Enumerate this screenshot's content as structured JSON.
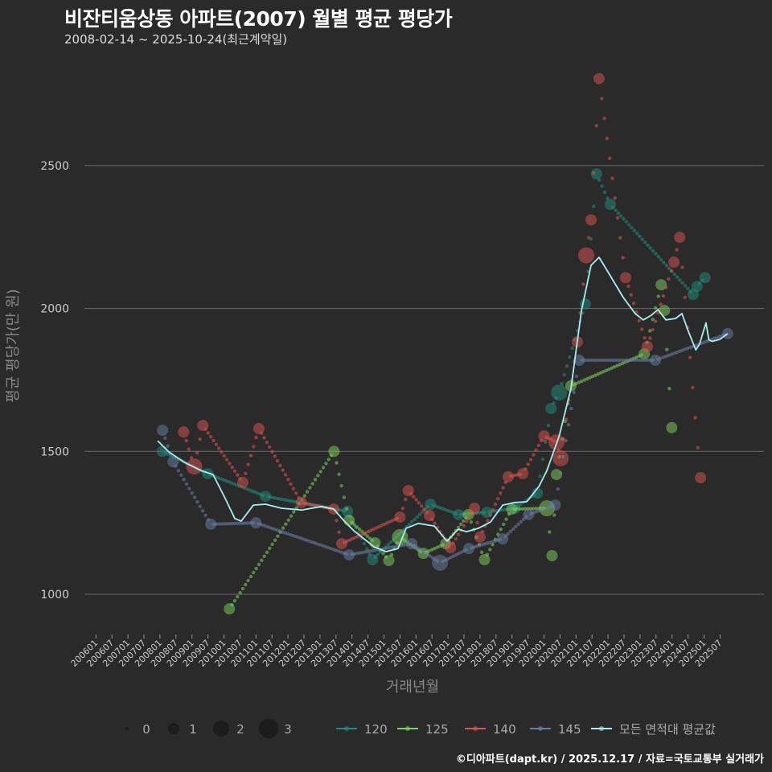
{
  "title": "비잔티움상동 아파트(2007) 월별 평균 평당가",
  "subtitle": "2008-02-14 ~ 2025-10-24(최근계약일)",
  "caption": "©디아파트(dapt.kr) / 2025.12.17 / 자료=국토교통부 실거래가",
  "chart_data": {
    "type": "scatter",
    "title": "비잔티움상동 아파트(2007) 월별 평균 평당가",
    "xlabel": "거래년월",
    "ylabel": "평균 평당가(만 원)",
    "ylim": [
      870,
      2870
    ],
    "y_ticks": [
      1000,
      1500,
      2000,
      2500
    ],
    "x_ticks": [
      "200601",
      "200607",
      "200701",
      "200707",
      "200801",
      "200807",
      "200901",
      "200907",
      "201001",
      "201007",
      "201101",
      "201107",
      "201201",
      "201207",
      "201301",
      "201307",
      "201401",
      "201407",
      "201501",
      "201507",
      "201601",
      "201607",
      "201701",
      "201707",
      "201801",
      "201807",
      "201901",
      "201907",
      "202001",
      "202007",
      "202101",
      "202107",
      "202201",
      "202207",
      "202301",
      "202307",
      "202401",
      "202407",
      "202501",
      "202507"
    ],
    "grid": true,
    "size_legend": {
      "title": "",
      "values": [
        "0",
        "1",
        "2",
        "3"
      ]
    },
    "legend_position": "bottom",
    "series": [
      {
        "name": "120",
        "color": "#1f8f7e",
        "points": [
          [
            2008.08,
            1500,
            1
          ],
          [
            2009.49,
            1422,
            1
          ],
          [
            2011.3,
            1343,
            1
          ],
          [
            2013.86,
            1290,
            1
          ],
          [
            2014.64,
            1121,
            1
          ],
          [
            2016.45,
            1315,
            1
          ],
          [
            2017.33,
            1279,
            1
          ],
          [
            2018.21,
            1287,
            1
          ],
          [
            2019.09,
            1301,
            1
          ],
          [
            2019.79,
            1354,
            1
          ],
          [
            2020.22,
            1650,
            1
          ],
          [
            2020.47,
            1706,
            2
          ],
          [
            2021.29,
            2016,
            1
          ],
          [
            2021.64,
            2471,
            1
          ],
          [
            2022.07,
            2364,
            1
          ],
          [
            2024.66,
            2049,
            1
          ],
          [
            2024.78,
            2077,
            1
          ],
          [
            2025.03,
            2108,
            1
          ]
        ]
      },
      {
        "name": "125",
        "color": "#7fd35c",
        "points": [
          [
            2010.17,
            949,
            1
          ],
          [
            2013.44,
            1500,
            1
          ],
          [
            2013.91,
            1259,
            1
          ],
          [
            2014.72,
            1180,
            1
          ],
          [
            2015.15,
            1118,
            1
          ],
          [
            2015.5,
            1200,
            2
          ],
          [
            2016.23,
            1143,
            1
          ],
          [
            2016.93,
            1177,
            1
          ],
          [
            2017.64,
            1279,
            1
          ],
          [
            2018.14,
            1121,
            1
          ],
          [
            2018.99,
            1298,
            1
          ],
          [
            2020.09,
            1301,
            2
          ],
          [
            2020.25,
            1135,
            1
          ],
          [
            2020.39,
            1419,
            1
          ],
          [
            2020.84,
            1729,
            1
          ],
          [
            2023.13,
            1841,
            1
          ],
          [
            2023.66,
            2083,
            1
          ],
          [
            2023.76,
            1993,
            1
          ],
          [
            2023.99,
            1583,
            1
          ]
        ]
      },
      {
        "name": "140",
        "color": "#e0534f",
        "points": [
          [
            2008.74,
            1568,
            1
          ],
          [
            2009.07,
            1447,
            2
          ],
          [
            2009.34,
            1591,
            1
          ],
          [
            2010.59,
            1391,
            1
          ],
          [
            2011.09,
            1580,
            1
          ],
          [
            2012.42,
            1321,
            1
          ],
          [
            2013.43,
            1298,
            1
          ],
          [
            2013.68,
            1177,
            1
          ],
          [
            2015.5,
            1270,
            1
          ],
          [
            2015.76,
            1363,
            1
          ],
          [
            2016.42,
            1276,
            1
          ],
          [
            2017.08,
            1163,
            1
          ],
          [
            2017.83,
            1301,
            1
          ],
          [
            2018.0,
            1200,
            1
          ],
          [
            2018.88,
            1411,
            1
          ],
          [
            2019.34,
            1422,
            1
          ],
          [
            2020.0,
            1554,
            1
          ],
          [
            2020.39,
            1532,
            2
          ],
          [
            2020.52,
            1476,
            2
          ],
          [
            2021.04,
            1883,
            1
          ],
          [
            2021.32,
            2186,
            2
          ],
          [
            2021.47,
            2310,
            1
          ],
          [
            2021.72,
            2804,
            1
          ],
          [
            2022.55,
            2108,
            1
          ],
          [
            2023.23,
            1867,
            1
          ],
          [
            2024.06,
            2162,
            1
          ],
          [
            2024.24,
            2249,
            1
          ],
          [
            2024.89,
            1408,
            1
          ]
        ]
      },
      {
        "name": "145",
        "color": "#6b7fa6",
        "points": [
          [
            2008.08,
            1574,
            1
          ],
          [
            2008.41,
            1464,
            1
          ],
          [
            2009.59,
            1245,
            1
          ],
          [
            2011.0,
            1250,
            1
          ],
          [
            2013.91,
            1138,
            1
          ],
          [
            2015.87,
            1177,
            1
          ],
          [
            2016.75,
            1110,
            2
          ],
          [
            2017.65,
            1160,
            1
          ],
          [
            2018.71,
            1194,
            1
          ],
          [
            2019.52,
            1279,
            1
          ],
          [
            2020.35,
            1312,
            1
          ],
          [
            2021.1,
            1819,
            1
          ],
          [
            2023.48,
            1819,
            1
          ],
          [
            2025.74,
            1912,
            1
          ]
        ]
      }
    ],
    "average": {
      "name": "모든 면적대 평균값",
      "color": "#a8eef0",
      "points": [
        [
          2007.93,
          1537
        ],
        [
          2008.28,
          1498
        ],
        [
          2008.78,
          1461
        ],
        [
          2009.28,
          1433
        ],
        [
          2009.66,
          1419
        ],
        [
          2010.04,
          1335
        ],
        [
          2010.34,
          1265
        ],
        [
          2010.54,
          1256
        ],
        [
          2010.92,
          1312
        ],
        [
          2011.3,
          1315
        ],
        [
          2011.8,
          1301
        ],
        [
          2012.43,
          1295
        ],
        [
          2013.05,
          1307
        ],
        [
          2013.43,
          1298
        ],
        [
          2013.76,
          1256
        ],
        [
          2014.06,
          1222
        ],
        [
          2014.69,
          1166
        ],
        [
          2015.06,
          1149
        ],
        [
          2015.44,
          1160
        ],
        [
          2015.69,
          1231
        ],
        [
          2016.07,
          1248
        ],
        [
          2016.57,
          1239
        ],
        [
          2016.97,
          1186
        ],
        [
          2017.32,
          1228
        ],
        [
          2017.57,
          1219
        ],
        [
          2017.95,
          1231
        ],
        [
          2018.33,
          1253
        ],
        [
          2018.71,
          1312
        ],
        [
          2019.08,
          1321
        ],
        [
          2019.46,
          1324
        ],
        [
          2019.84,
          1377
        ],
        [
          2020.09,
          1433
        ],
        [
          2020.47,
          1552
        ],
        [
          2020.84,
          1718
        ],
        [
          2021.17,
          1993
        ],
        [
          2021.47,
          2151
        ],
        [
          2021.72,
          2179
        ],
        [
          2022.1,
          2109
        ],
        [
          2022.48,
          2038
        ],
        [
          2022.85,
          1982
        ],
        [
          2023.1,
          1960
        ],
        [
          2023.35,
          1976
        ],
        [
          2023.56,
          1996
        ],
        [
          2023.81,
          1960
        ],
        [
          2024.11,
          1965
        ],
        [
          2024.31,
          1982
        ],
        [
          2024.49,
          1926
        ],
        [
          2024.74,
          1855
        ],
        [
          2024.86,
          1875
        ],
        [
          2025.06,
          1950
        ],
        [
          2025.15,
          1890
        ],
        [
          2025.26,
          1885
        ],
        [
          2025.49,
          1892
        ],
        [
          2025.74,
          1912
        ]
      ]
    }
  }
}
